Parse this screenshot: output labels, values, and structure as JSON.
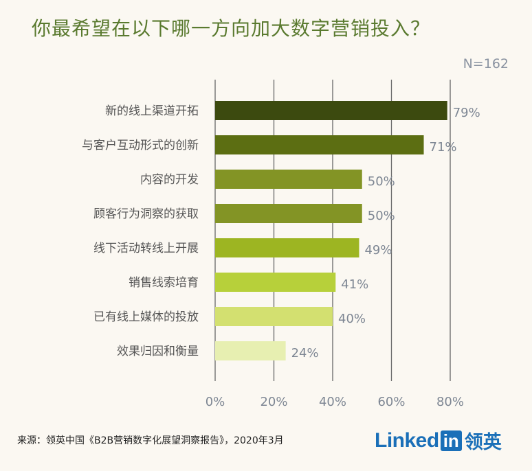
{
  "title": "你最希望在以下哪一方向加大数字营销投入？",
  "sample_size": "N=162",
  "source": "来源：领英中国《B2B营销数字化展望洞察报告》，2020年3月",
  "logo": {
    "linked": "Linked",
    "in": "in",
    "cn": "领英"
  },
  "colors": {
    "title": "#5a7a2f",
    "bars": [
      "#3c4a0f",
      "#5c6e12",
      "#839425",
      "#839425",
      "#9db522",
      "#b7d03a",
      "#d3e070",
      "#e7efb1"
    ],
    "label_text": "#555555",
    "value_text": "#7d8693",
    "grid": "#666666"
  },
  "chart_data": {
    "type": "bar",
    "orientation": "horizontal",
    "categories": [
      "新的线上渠道开拓",
      "与客户互动形式的创新",
      "内容的开发",
      "顾客行为洞察的获取",
      "线下活动转线上开展",
      "销售线索培育",
      "已有线上媒体的投放",
      "效果归因和衡量"
    ],
    "values": [
      79,
      71,
      50,
      50,
      49,
      41,
      40,
      24
    ],
    "value_labels": [
      "79%",
      "71%",
      "50%",
      "50%",
      "49%",
      "41%",
      "40%",
      "24%"
    ],
    "xticks": [
      "0%",
      "20%",
      "40%",
      "60%",
      "80%"
    ],
    "xlim": [
      0,
      80
    ],
    "grid": true
  }
}
